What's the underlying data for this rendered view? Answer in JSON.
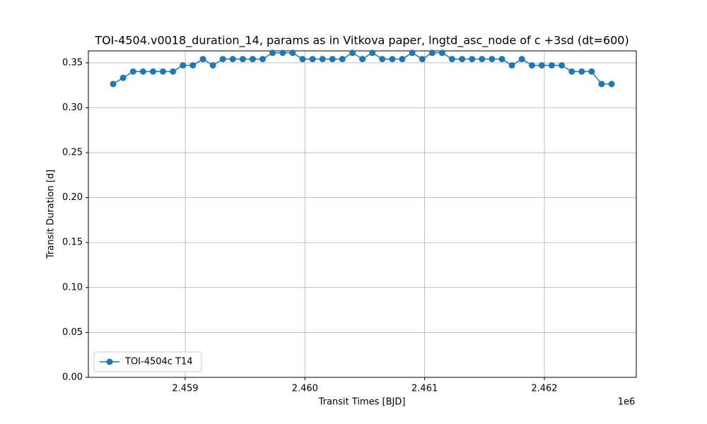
{
  "chart_data": {
    "type": "line",
    "title": "TOI-4504.v0018_duration_14, params as in Vitkova paper, lngtd_asc_node of c +3sd (dt=600)",
    "xlabel": "Transit Times [BJD]",
    "ylabel": "Transit Duration [d]",
    "x_offset_label": "1e6",
    "x": [
      2458398,
      2458481,
      2458565,
      2458648,
      2458731,
      2458814,
      2458898,
      2458981,
      2459064,
      2459148,
      2459231,
      2459314,
      2459397,
      2459481,
      2459564,
      2459647,
      2459730,
      2459814,
      2459897,
      2459980,
      2460064,
      2460147,
      2460230,
      2460313,
      2460397,
      2460480,
      2460563,
      2460646,
      2460730,
      2460813,
      2460896,
      2460980,
      2461063,
      2461146,
      2461229,
      2461313,
      2461396,
      2461479,
      2461562,
      2461646,
      2461729,
      2461812,
      2461896,
      2461979,
      2462062,
      2462145,
      2462229,
      2462312,
      2462395,
      2462478,
      2462562
    ],
    "series": [
      {
        "name": "TOI-4504c T14",
        "color": "#1f77b4",
        "values": [
          0.3264,
          0.3333,
          0.3403,
          0.3403,
          0.3403,
          0.3403,
          0.3403,
          0.3472,
          0.3472,
          0.3542,
          0.3472,
          0.3542,
          0.3542,
          0.3542,
          0.3542,
          0.3542,
          0.3611,
          0.3611,
          0.3611,
          0.3542,
          0.3542,
          0.3542,
          0.3542,
          0.3542,
          0.3611,
          0.3542,
          0.3611,
          0.3542,
          0.3542,
          0.3542,
          0.3611,
          0.3542,
          0.3611,
          0.3611,
          0.3542,
          0.3542,
          0.3542,
          0.3542,
          0.3542,
          0.3542,
          0.3472,
          0.3542,
          0.3472,
          0.3472,
          0.3472,
          0.3472,
          0.3403,
          0.3403,
          0.3403,
          0.3264,
          0.3264
        ]
      }
    ],
    "xlim": [
      2458191,
      2462768
    ],
    "ylim": [
      0,
      0.3633
    ],
    "xticks": [
      {
        "value": 2459000,
        "label": "2.459"
      },
      {
        "value": 2460000,
        "label": "2.460"
      },
      {
        "value": 2461000,
        "label": "2.461"
      },
      {
        "value": 2462000,
        "label": "2.462"
      }
    ],
    "yticks": [
      {
        "value": 0,
        "label": "0.00"
      },
      {
        "value": 0.05,
        "label": "0.05"
      },
      {
        "value": 0.1,
        "label": "0.10"
      },
      {
        "value": 0.15,
        "label": "0.15"
      },
      {
        "value": 0.2,
        "label": "0.20"
      },
      {
        "value": 0.25,
        "label": "0.25"
      },
      {
        "value": 0.3,
        "label": "0.30"
      },
      {
        "value": 0.35,
        "label": "0.35"
      }
    ],
    "grid": true,
    "legend_position": "lower-left"
  }
}
